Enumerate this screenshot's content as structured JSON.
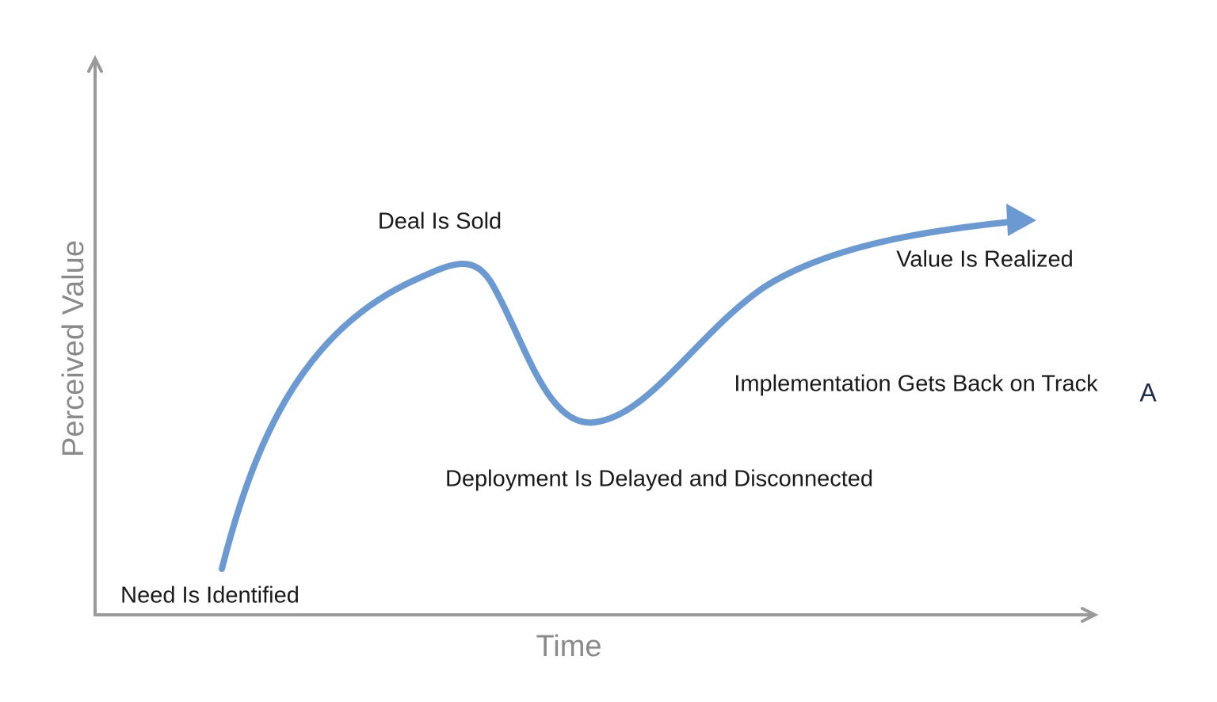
{
  "y_axis_label": "Perceived Value",
  "x_axis_label": "Time",
  "annotations": [
    "Deal Is Sold",
    "Value Is Realized",
    "Implementation Gets Back on Track",
    "Deployment Is Delayed and Disconnected",
    "Need Is Identified"
  ],
  "marker": "A"
}
